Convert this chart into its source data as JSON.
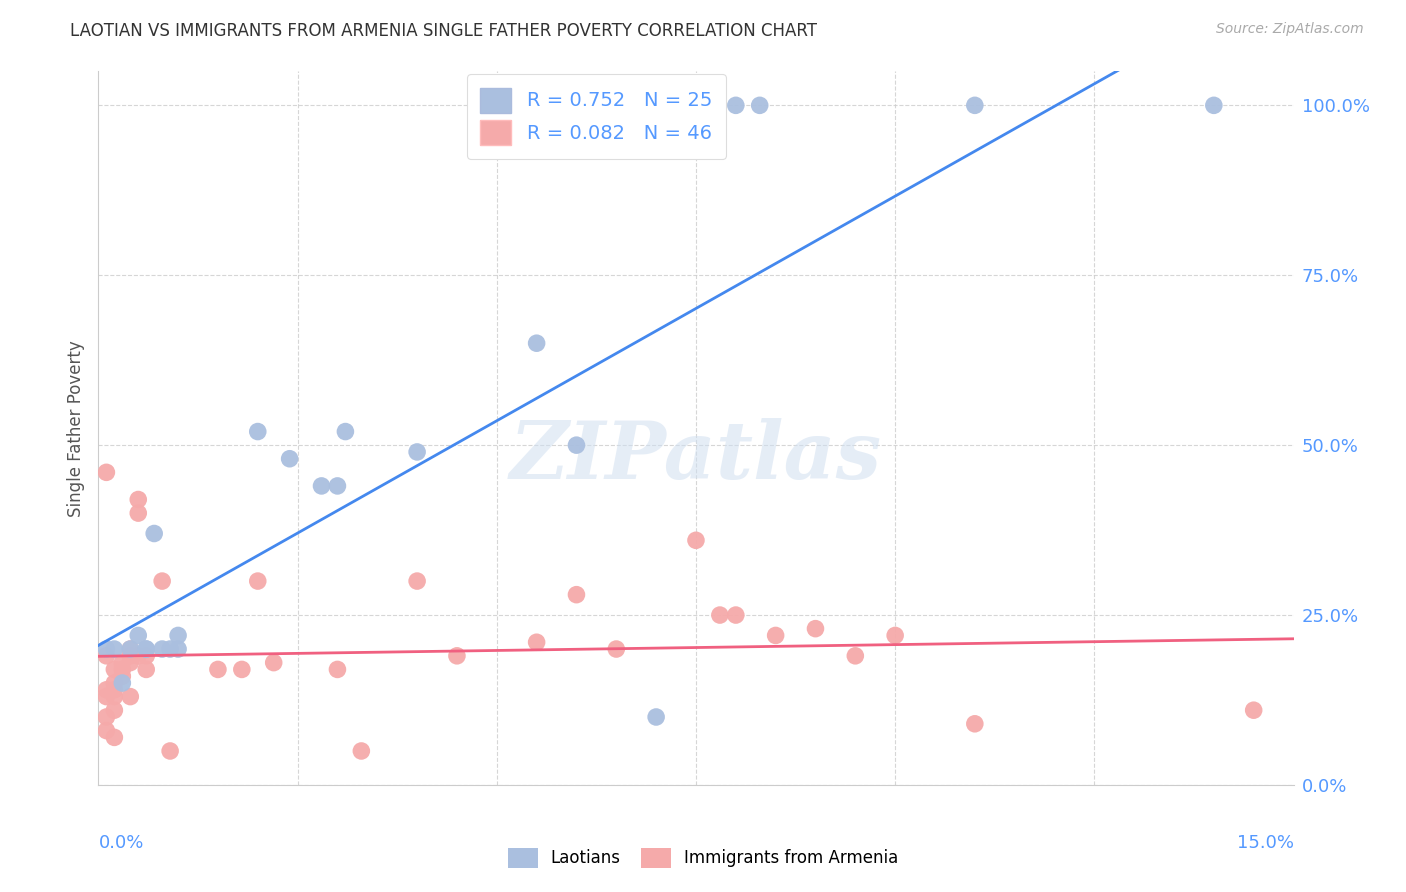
{
  "title": "LAOTIAN VS IMMIGRANTS FROM ARMENIA SINGLE FATHER POVERTY CORRELATION CHART",
  "source": "Source: ZipAtlas.com",
  "ylabel": "Single Father Poverty",
  "legend_blue": "R = 0.752   N = 25",
  "legend_pink": "R = 0.082   N = 46",
  "legend_blue_label": "Laotians",
  "legend_pink_label": "Immigrants from Armenia",
  "blue_color": "#AABFDF",
  "pink_color": "#F5AAAA",
  "blue_line_color": "#4488EE",
  "pink_line_color": "#F06080",
  "blue_dots": [
    [
      0.001,
      0.2
    ],
    [
      0.002,
      0.2
    ],
    [
      0.003,
      0.15
    ],
    [
      0.004,
      0.2
    ],
    [
      0.005,
      0.22
    ],
    [
      0.006,
      0.2
    ],
    [
      0.006,
      0.2
    ],
    [
      0.007,
      0.37
    ],
    [
      0.008,
      0.2
    ],
    [
      0.009,
      0.2
    ],
    [
      0.01,
      0.2
    ],
    [
      0.01,
      0.22
    ],
    [
      0.02,
      0.52
    ],
    [
      0.024,
      0.48
    ],
    [
      0.028,
      0.44
    ],
    [
      0.03,
      0.44
    ],
    [
      0.031,
      0.52
    ],
    [
      0.04,
      0.49
    ],
    [
      0.055,
      0.65
    ],
    [
      0.06,
      0.5
    ],
    [
      0.07,
      0.1
    ],
    [
      0.08,
      1.0
    ],
    [
      0.083,
      1.0
    ],
    [
      0.11,
      1.0
    ],
    [
      0.14,
      1.0
    ]
  ],
  "pink_dots": [
    [
      0.001,
      0.46
    ],
    [
      0.001,
      0.19
    ],
    [
      0.001,
      0.14
    ],
    [
      0.001,
      0.13
    ],
    [
      0.001,
      0.1
    ],
    [
      0.001,
      0.08
    ],
    [
      0.002,
      0.17
    ],
    [
      0.002,
      0.15
    ],
    [
      0.002,
      0.14
    ],
    [
      0.002,
      0.13
    ],
    [
      0.002,
      0.11
    ],
    [
      0.002,
      0.07
    ],
    [
      0.003,
      0.18
    ],
    [
      0.003,
      0.17
    ],
    [
      0.003,
      0.16
    ],
    [
      0.004,
      0.2
    ],
    [
      0.004,
      0.19
    ],
    [
      0.004,
      0.18
    ],
    [
      0.004,
      0.13
    ],
    [
      0.005,
      0.42
    ],
    [
      0.005,
      0.4
    ],
    [
      0.005,
      0.19
    ],
    [
      0.006,
      0.19
    ],
    [
      0.006,
      0.17
    ],
    [
      0.008,
      0.3
    ],
    [
      0.009,
      0.05
    ],
    [
      0.015,
      0.17
    ],
    [
      0.018,
      0.17
    ],
    [
      0.02,
      0.3
    ],
    [
      0.022,
      0.18
    ],
    [
      0.03,
      0.17
    ],
    [
      0.033,
      0.05
    ],
    [
      0.04,
      0.3
    ],
    [
      0.045,
      0.19
    ],
    [
      0.055,
      0.21
    ],
    [
      0.06,
      0.28
    ],
    [
      0.065,
      0.2
    ],
    [
      0.075,
      0.36
    ],
    [
      0.078,
      0.25
    ],
    [
      0.08,
      0.25
    ],
    [
      0.085,
      0.22
    ],
    [
      0.09,
      0.23
    ],
    [
      0.095,
      0.19
    ],
    [
      0.1,
      0.22
    ],
    [
      0.11,
      0.09
    ],
    [
      0.145,
      0.11
    ]
  ],
  "xlim": [
    0.0,
    0.15
  ],
  "ylim": [
    0.0,
    1.05
  ],
  "ytick_vals": [
    0.0,
    0.25,
    0.5,
    0.75,
    1.0
  ],
  "ytick_labels": [
    "0.0%",
    "25.0%",
    "50.0%",
    "75.0%",
    "100.0%"
  ],
  "background_color": "#FFFFFF",
  "grid_color": "#CCCCCC",
  "axis_label_color": "#5599FF",
  "watermark_text": "ZIPatlas",
  "watermark_color": "#D0DFF0"
}
